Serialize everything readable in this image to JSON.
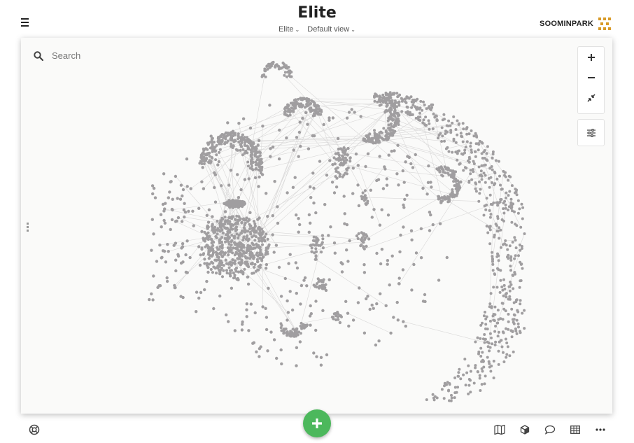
{
  "header": {
    "title": "Elite",
    "map_selector": "Elite",
    "view_selector": "Default view",
    "brand_name": "SOOMINPARK"
  },
  "canvas": {
    "search_placeholder": "Search",
    "node_color": "#a09ea0",
    "edge_color": "#d9d8d8",
    "background": "#fafaf9"
  },
  "controls": {
    "zoom": [
      "zoom-in-icon",
      "zoom-out-icon",
      "fit-view-icon"
    ],
    "settings": "sliders-icon"
  },
  "footer": {
    "help": "lifebuoy-icon",
    "add": "plus-icon",
    "add_color": "#4cb85c",
    "tools": [
      "map-icon",
      "cube-icon",
      "comment-icon",
      "table-icon",
      "more-icon"
    ]
  }
}
